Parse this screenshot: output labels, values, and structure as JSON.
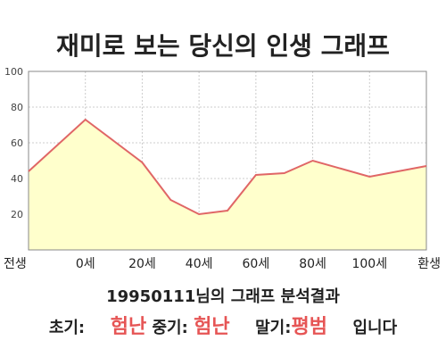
{
  "chart_data": {
    "type": "area",
    "title": "재미로 보는 당신의 인생 그래프",
    "categories": [
      "전생",
      "0세",
      "20세",
      "40세",
      "60세",
      "80세",
      "100세",
      "환생"
    ],
    "series": [
      {
        "x": [
          -20,
          0,
          10,
          20,
          30,
          40,
          50,
          60,
          70,
          80,
          100,
          120
        ],
        "values": [
          44,
          73,
          61,
          49,
          28,
          20,
          22,
          42,
          43,
          50,
          41,
          47
        ]
      }
    ],
    "yticks": [
      20,
      40,
      60,
      80,
      100
    ],
    "ylim": [
      0,
      100
    ],
    "xlim": [
      -20,
      120
    ],
    "grid": true,
    "colors": {
      "fill": "#ffffcc",
      "line": "#e06666",
      "grid": "#cccccc",
      "axis": "#888888"
    }
  },
  "summary": {
    "line1": "19950111님의 그래프 분석결과",
    "early_label": "초기:",
    "early_value": "험난",
    "middle_label": "중기:",
    "middle_value": "험난",
    "late_label": "말기:",
    "late_value": "평범",
    "suffix": "입니다"
  }
}
